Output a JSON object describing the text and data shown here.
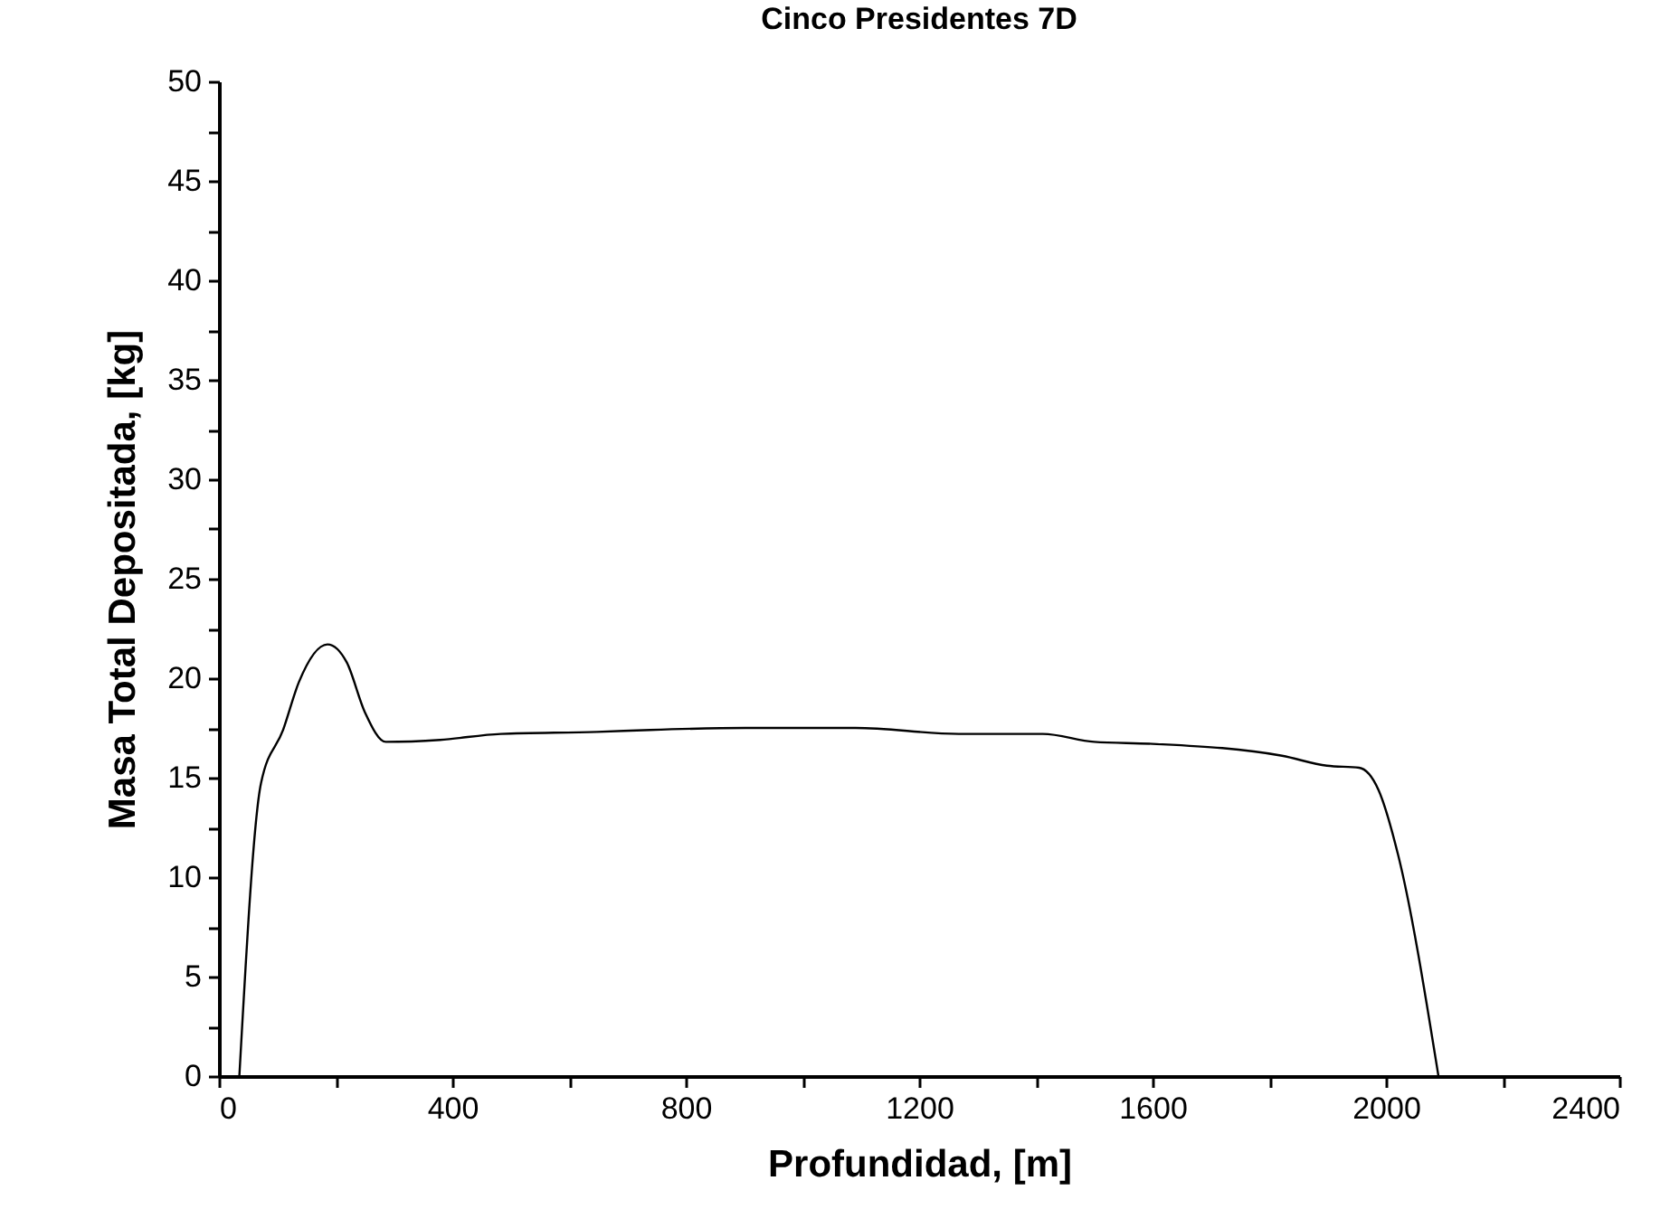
{
  "chart_data": {
    "type": "line",
    "title": "Cinco Presidentes 7D",
    "xlabel": "Profundidad, [m]",
    "ylabel": "Masa Total Depositada, [kg]",
    "x": [
      35,
      72,
      110,
      137,
      186,
      219,
      250,
      286,
      379,
      483,
      648,
      739,
      902,
      1091,
      1268,
      1412,
      1500,
      1600,
      1822,
      1899,
      1954,
      1987,
      2021,
      2090
    ],
    "series": [
      {
        "color": "#000000",
        "values": [
          0,
          14.7,
          17.4,
          19.8,
          21.7,
          20.8,
          18.3,
          16.8,
          16.9,
          17.2,
          17.3,
          17.4,
          17.5,
          17.5,
          17.2,
          17.2,
          16.8,
          16.7,
          16.1,
          15.6,
          15.5,
          14.4,
          11.1,
          0
        ]
      }
    ],
    "xlim": [
      0,
      2400
    ],
    "ylim": [
      0,
      50
    ],
    "xticks": [
      0,
      {
        "value": 200,
        "label": null
      },
      400,
      {
        "value": 600,
        "label": null
      },
      800,
      {
        "value": 1000,
        "label": null
      },
      1200,
      {
        "value": 1400,
        "label": null
      },
      1600,
      {
        "value": 1800,
        "label": null
      },
      2000,
      {
        "value": 2200,
        "label": null
      },
      2400
    ],
    "yticks": [
      0,
      {
        "value": 2.5,
        "label": null
      },
      5,
      {
        "value": 7.5,
        "label": null
      },
      10,
      {
        "value": 12.5,
        "label": null
      },
      15,
      {
        "value": 17.5,
        "label": null
      },
      20,
      {
        "value": 22.5,
        "label": null
      },
      25,
      {
        "value": 27.5,
        "label": null
      },
      30,
      {
        "value": 32.5,
        "label": null
      },
      35,
      {
        "value": 37.5,
        "label": null
      },
      40,
      {
        "value": 42.5,
        "label": null
      },
      45,
      {
        "value": 47.5,
        "label": null
      },
      50
    ],
    "grid": false,
    "marker": "none",
    "line_style": "solid"
  }
}
